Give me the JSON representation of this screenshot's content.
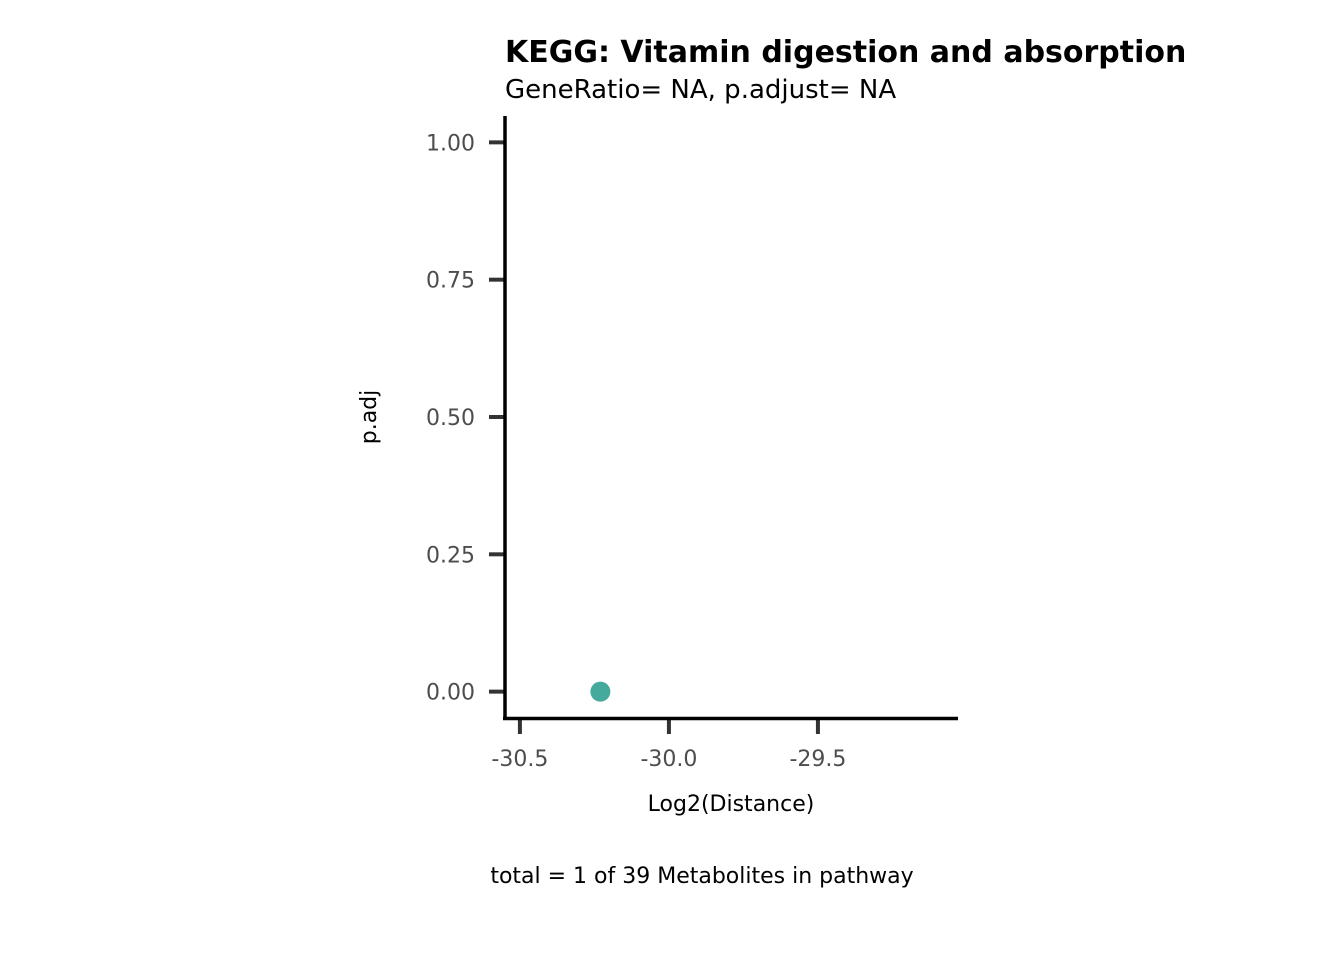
{
  "chart_data": {
    "type": "scatter",
    "title": "KEGG: Vitamin digestion and absorption",
    "subtitle": "GeneRatio= NA, p.adjust= NA",
    "xlabel": "Log2(Distance)",
    "ylabel": "p.adj",
    "caption": "total = 1 of 39 Metabolites in pathway",
    "xlim": [
      -30.55,
      -29.03
    ],
    "ylim": [
      -0.048,
      1.048
    ],
    "x_ticks": [
      -30.5,
      -30.0,
      -29.5
    ],
    "x_tick_labels": [
      "-30.5",
      "-30.0",
      "-29.5"
    ],
    "y_ticks": [
      0.0,
      0.25,
      0.5,
      0.75,
      1.0
    ],
    "y_tick_labels": [
      "0.00",
      "0.25",
      "0.50",
      "0.75",
      "1.00"
    ],
    "points": [
      {
        "x": -30.23,
        "y": 0.0
      }
    ],
    "point_color": "#45a99b",
    "grid": false,
    "legend": "none"
  }
}
